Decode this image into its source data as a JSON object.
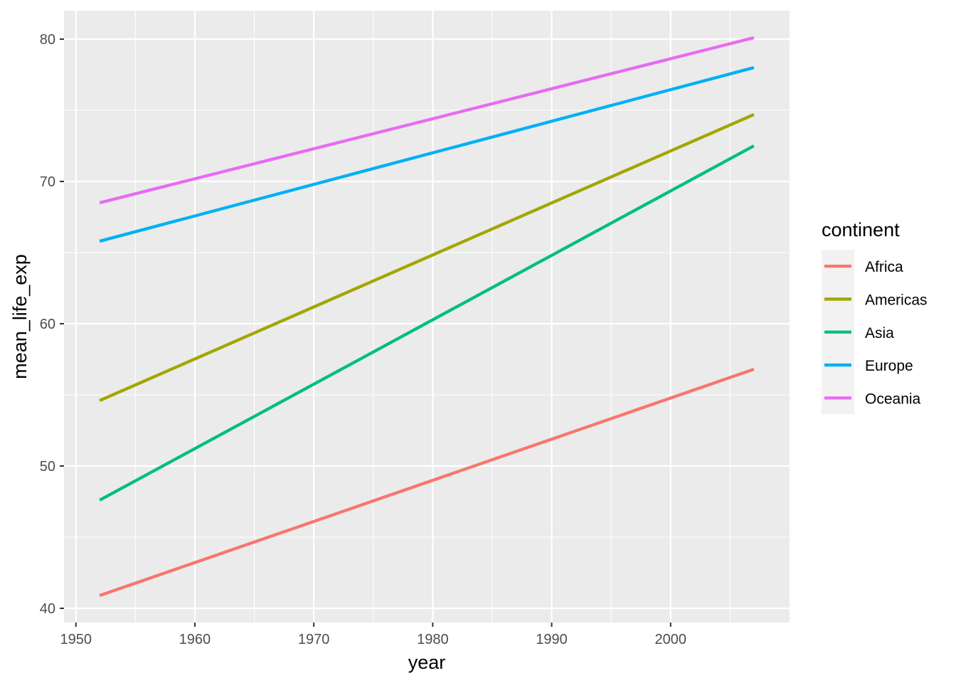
{
  "chart_data": {
    "type": "line",
    "xlabel": "year",
    "ylabel": "mean_life_exp",
    "xlim": [
      1949,
      2010
    ],
    "ylim": [
      39,
      82
    ],
    "x_ticks": [
      1950,
      1960,
      1970,
      1980,
      1990,
      2000
    ],
    "x_minor_ticks": [
      1955,
      1965,
      1975,
      1985,
      1995,
      2005
    ],
    "y_ticks": [
      40,
      50,
      60,
      70,
      80
    ],
    "y_minor_ticks": [
      45,
      55,
      65,
      75
    ],
    "grid": true,
    "panel_background": "#ebebeb",
    "legend": {
      "title": "continent",
      "placement": "right"
    },
    "series": [
      {
        "name": "Africa",
        "color": "#F8766D",
        "x": [
          1952,
          2007
        ],
        "y": [
          40.9,
          56.8
        ]
      },
      {
        "name": "Americas",
        "color": "#A3A500",
        "x": [
          1952,
          2007
        ],
        "y": [
          54.6,
          74.7
        ]
      },
      {
        "name": "Asia",
        "color": "#00BF7D",
        "x": [
          1952,
          2007
        ],
        "y": [
          47.6,
          72.5
        ]
      },
      {
        "name": "Europe",
        "color": "#00B0F6",
        "x": [
          1952,
          2007
        ],
        "y": [
          65.8,
          78.0
        ]
      },
      {
        "name": "Oceania",
        "color": "#E76BF3",
        "x": [
          1952,
          2007
        ],
        "y": [
          68.5,
          80.1
        ]
      }
    ]
  }
}
